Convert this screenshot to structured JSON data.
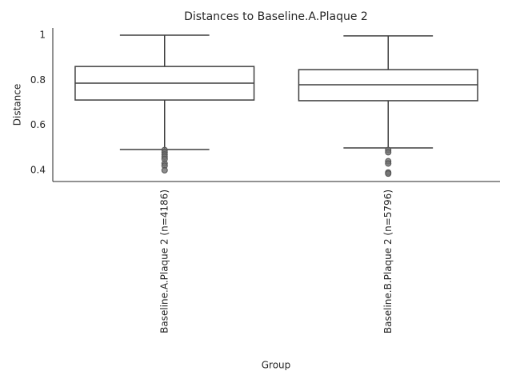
{
  "chart_data": {
    "type": "box",
    "title": "Distances to Baseline.A.Plaque 2",
    "x_label": "Group",
    "y_label": "Distance",
    "categories": [
      "Baseline.A.Plaque 2 (n=4186)",
      "Baseline.B.Plaque 2 (n=5796)"
    ],
    "boxes": [
      {
        "whislo": 0.492,
        "q1": 0.712,
        "med": 0.787,
        "q3": 0.861,
        "whishi": 1.0,
        "fliers": [
          0.49,
          0.48,
          0.47,
          0.46,
          0.45,
          0.43,
          0.42,
          0.4
        ]
      },
      {
        "whislo": 0.499,
        "q1": 0.709,
        "med": 0.78,
        "q3": 0.847,
        "whishi": 0.997,
        "fliers": [
          0.49,
          0.48,
          0.44,
          0.43,
          0.39,
          0.385
        ]
      }
    ],
    "color": "#3f3f3f",
    "flier_color": "#707070",
    "ylim": [
      0.35,
      1.032
    ],
    "yticks": [
      0.4,
      0.6,
      0.8,
      1.0
    ],
    "grid": false
  }
}
